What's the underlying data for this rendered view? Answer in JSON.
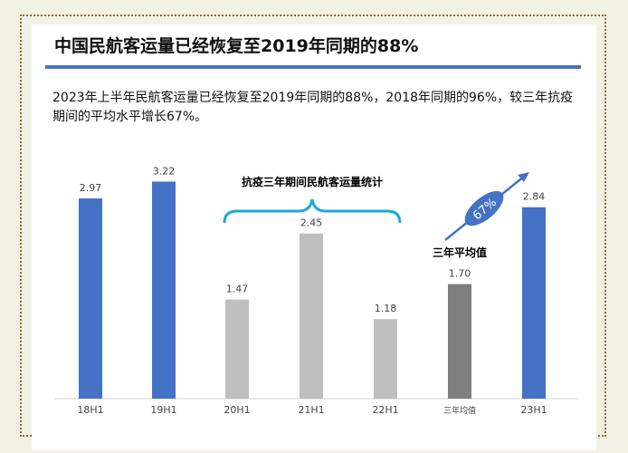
{
  "title": "中国民航客运量已经恢复至2019年同期的88%",
  "paragraph": "2023年上半年民航客运量已经恢复至2019年同期的88%，2018年同期的96%，较三年抗疫期间的平均水平增长67%。",
  "chart_data": {
    "type": "bar",
    "categories": [
      "18H1",
      "19H1",
      "20H1",
      "21H1",
      "22H1",
      "三年均值",
      "23H1"
    ],
    "values": [
      2.97,
      3.22,
      1.47,
      2.45,
      1.18,
      1.7,
      2.84
    ],
    "colors": [
      "#4472c4",
      "#4472c4",
      "#bfbfbf",
      "#bfbfbf",
      "#bfbfbf",
      "#7f7f7f",
      "#4472c4"
    ],
    "annotations": {
      "bracket_label": "抗疫三年期间民航客运量统计",
      "avg_label": "三年平均值",
      "growth": "67%"
    },
    "ylim": [
      0,
      3.6
    ]
  }
}
